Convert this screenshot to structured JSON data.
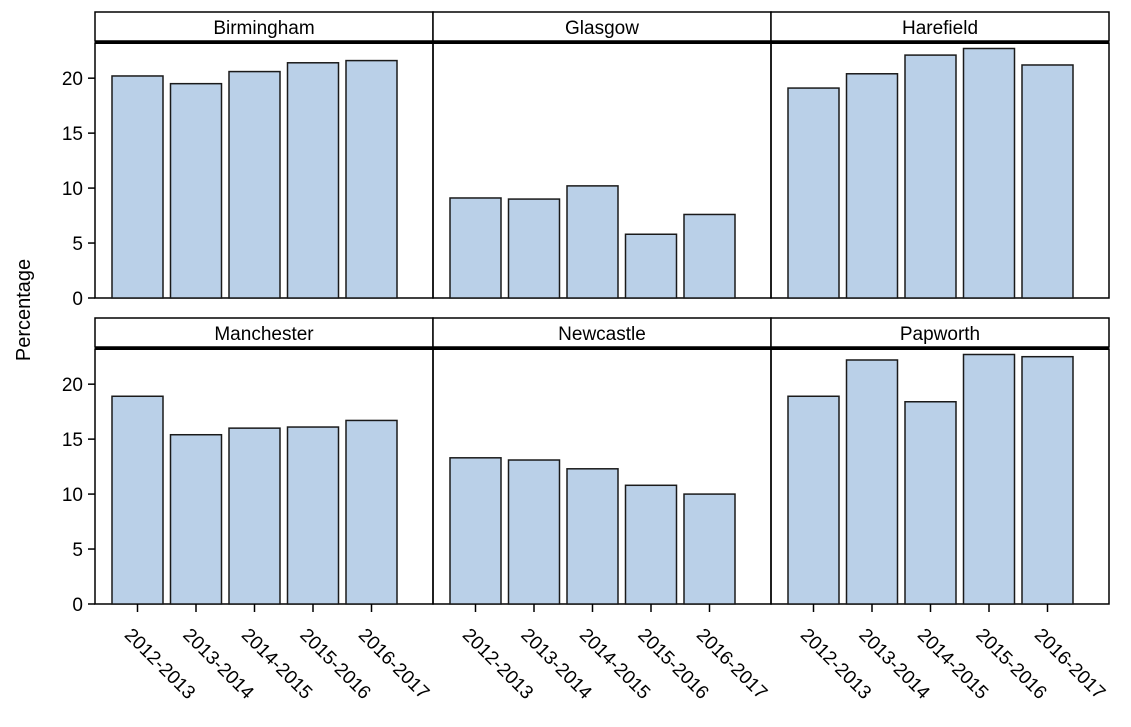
{
  "chart_data": {
    "type": "bar",
    "ylabel": "Percentage",
    "ylim": [
      0,
      23.2
    ],
    "yticks": [
      "0",
      "5",
      "10",
      "15",
      "20"
    ],
    "categories": [
      "2012-2013",
      "2013-2014",
      "2014-2015",
      "2015-2016",
      "2016-2017"
    ],
    "grid": false,
    "bar_color": "#bad0e8",
    "panels": [
      {
        "name": "Birmingham",
        "values": [
          20.2,
          19.5,
          20.6,
          21.4,
          21.6
        ]
      },
      {
        "name": "Glasgow",
        "values": [
          9.1,
          9.0,
          10.2,
          5.8,
          7.6
        ]
      },
      {
        "name": "Harefield",
        "values": [
          19.1,
          20.4,
          22.1,
          22.7,
          21.2
        ]
      },
      {
        "name": "Manchester",
        "values": [
          18.9,
          15.4,
          16.0,
          16.1,
          16.7
        ]
      },
      {
        "name": "Newcastle",
        "values": [
          13.3,
          13.1,
          12.3,
          10.8,
          10.0
        ]
      },
      {
        "name": "Papworth",
        "values": [
          18.9,
          22.2,
          18.4,
          22.7,
          22.5
        ]
      }
    ]
  }
}
